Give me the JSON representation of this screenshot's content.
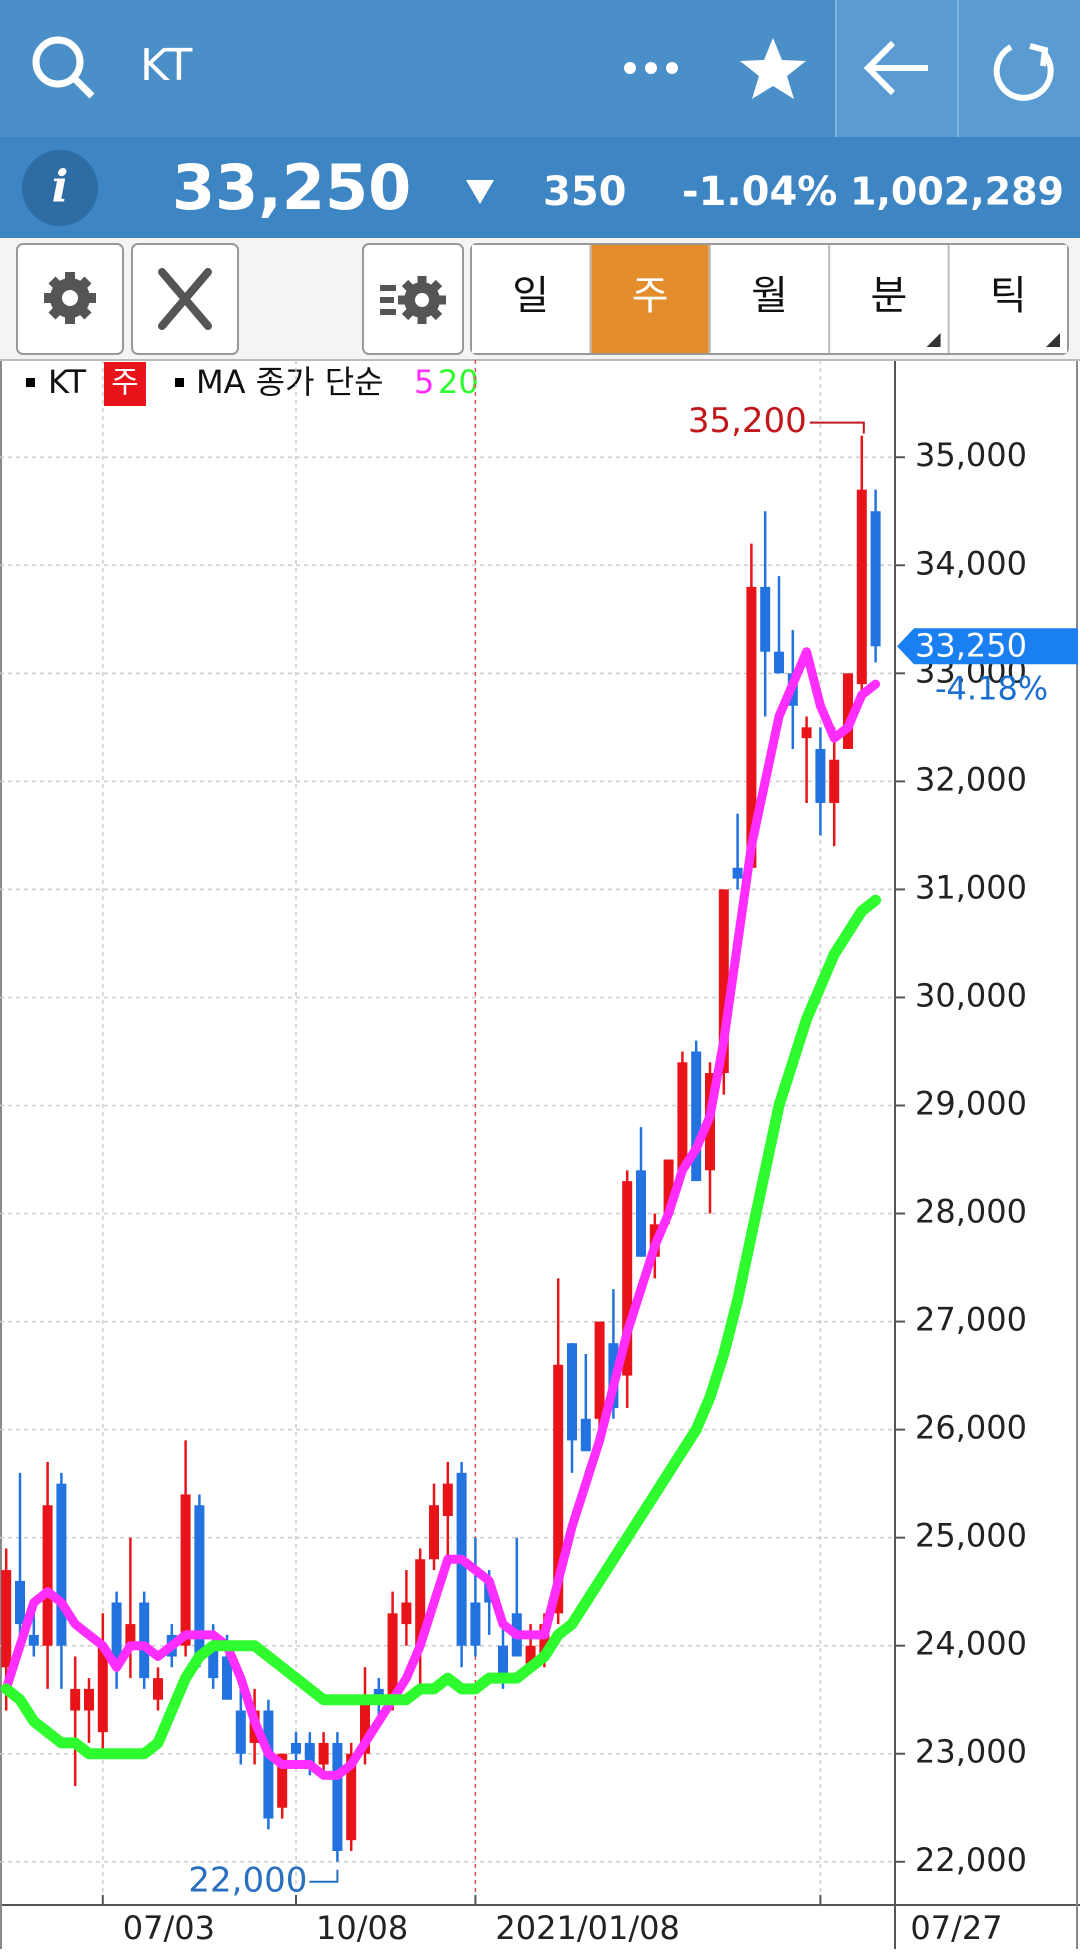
{
  "header": {
    "title": "KT",
    "price": "33,250",
    "change": "350",
    "change_pct": "-1.04%",
    "volume": "1,002,289"
  },
  "toolbar": {
    "tabs": [
      "일",
      "주",
      "월",
      "분",
      "틱"
    ],
    "active": 1
  },
  "chart_data": {
    "type": "candlestick",
    "legend": {
      "symbol": "KT",
      "period": "주",
      "ma_label": "MA 종가 단순"
    },
    "categories": [
      null,
      null,
      null,
      null,
      null,
      null,
      null,
      "07/03",
      null,
      null,
      null,
      null,
      null,
      null,
      null,
      null,
      null,
      null,
      null,
      null,
      null,
      "10/08",
      null,
      null,
      null,
      null,
      null,
      null,
      null,
      null,
      null,
      null,
      null,
      null,
      "2021/01/08",
      null,
      null,
      null,
      null,
      null,
      null,
      null,
      null,
      null,
      null,
      null,
      null,
      null,
      null,
      null,
      null,
      null,
      null,
      null,
      null,
      null,
      null,
      null,
      null,
      "07/27",
      null,
      null,
      null,
      null
    ],
    "candles": [
      {
        "open": 23800,
        "high": 24900,
        "low": 23400,
        "close": 24700
      },
      {
        "open": 24600,
        "high": 25600,
        "low": 24000,
        "close": 24200
      },
      {
        "open": 24100,
        "high": 24300,
        "low": 23900,
        "close": 24000
      },
      {
        "open": 24000,
        "high": 25700,
        "low": 23600,
        "close": 25300
      },
      {
        "open": 25500,
        "high": 25600,
        "low": 23600,
        "close": 24000
      },
      {
        "open": 23400,
        "high": 23900,
        "low": 22700,
        "close": 23600
      },
      {
        "open": 23400,
        "high": 23700,
        "low": 23100,
        "close": 23600
      },
      {
        "open": 23200,
        "high": 24300,
        "low": 23000,
        "close": 24000
      },
      {
        "open": 24400,
        "high": 24500,
        "low": 23600,
        "close": 23800
      },
      {
        "open": 24000,
        "high": 25000,
        "low": 23700,
        "close": 24200
      },
      {
        "open": 24400,
        "high": 24500,
        "low": 23600,
        "close": 23700
      },
      {
        "open": 23500,
        "high": 23800,
        "low": 23400,
        "close": 23700
      },
      {
        "open": 24100,
        "high": 24200,
        "low": 23800,
        "close": 23900
      },
      {
        "open": 24000,
        "high": 25900,
        "low": 23900,
        "close": 25400
      },
      {
        "open": 25300,
        "high": 25400,
        "low": 23800,
        "close": 23900
      },
      {
        "open": 24000,
        "high": 24200,
        "low": 23600,
        "close": 23700
      },
      {
        "open": 23900,
        "high": 24100,
        "low": 23500,
        "close": 23500
      },
      {
        "open": 23400,
        "high": 23600,
        "low": 22900,
        "close": 23000
      },
      {
        "open": 23100,
        "high": 23600,
        "low": 22900,
        "close": 23400
      },
      {
        "open": 23400,
        "high": 23500,
        "low": 22300,
        "close": 22400
      },
      {
        "open": 22500,
        "high": 23000,
        "low": 22400,
        "close": 23000
      },
      {
        "open": 23100,
        "high": 23200,
        "low": 22900,
        "close": 23000
      },
      {
        "open": 23100,
        "high": 23200,
        "low": 22800,
        "close": 22900
      },
      {
        "open": 22900,
        "high": 23200,
        "low": 22800,
        "close": 23100
      },
      {
        "open": 23100,
        "high": 23200,
        "low": 22000,
        "close": 22100
      },
      {
        "open": 22200,
        "high": 23100,
        "low": 22100,
        "close": 23000
      },
      {
        "open": 23000,
        "high": 23800,
        "low": 22900,
        "close": 23500
      },
      {
        "open": 23600,
        "high": 23700,
        "low": 23300,
        "close": 23500
      },
      {
        "open": 23500,
        "high": 24500,
        "low": 23400,
        "close": 24300
      },
      {
        "open": 24200,
        "high": 24700,
        "low": 24000,
        "close": 24400
      },
      {
        "open": 24000,
        "high": 24900,
        "low": 23600,
        "close": 24800
      },
      {
        "open": 24800,
        "high": 25500,
        "low": 24700,
        "close": 25300
      },
      {
        "open": 25200,
        "high": 25700,
        "low": 24800,
        "close": 25500
      },
      {
        "open": 25600,
        "high": 25700,
        "low": 23800,
        "close": 24000
      },
      {
        "open": 24400,
        "high": 25000,
        "low": 23900,
        "close": 24000
      },
      {
        "open": 24600,
        "high": 24700,
        "low": 24100,
        "close": 24400
      },
      {
        "open": 24000,
        "high": 24300,
        "low": 23600,
        "close": 23700
      },
      {
        "open": 24300,
        "high": 25000,
        "low": 23900,
        "close": 23900
      },
      {
        "open": 23800,
        "high": 24200,
        "low": 23800,
        "close": 24000
      },
      {
        "open": 23900,
        "high": 24300,
        "low": 23800,
        "close": 24200
      },
      {
        "open": 24300,
        "high": 27400,
        "low": 24200,
        "close": 26600
      },
      {
        "open": 26800,
        "high": 26800,
        "low": 25600,
        "close": 25900
      },
      {
        "open": 26100,
        "high": 26700,
        "low": 25800,
        "close": 25800
      },
      {
        "open": 26100,
        "high": 27000,
        "low": 25900,
        "close": 27000
      },
      {
        "open": 26800,
        "high": 27300,
        "low": 26100,
        "close": 26200
      },
      {
        "open": 26500,
        "high": 28400,
        "low": 26200,
        "close": 28300
      },
      {
        "open": 28400,
        "high": 28800,
        "low": 27600,
        "close": 27600
      },
      {
        "open": 27600,
        "high": 28000,
        "low": 27400,
        "close": 27900
      },
      {
        "open": 28000,
        "high": 28400,
        "low": 27900,
        "close": 28500
      },
      {
        "open": 28400,
        "high": 29500,
        "low": 28300,
        "close": 29400
      },
      {
        "open": 29500,
        "high": 29600,
        "low": 28300,
        "close": 28300
      },
      {
        "open": 28400,
        "high": 29400,
        "low": 28000,
        "close": 29300
      },
      {
        "open": 29300,
        "high": 31000,
        "low": 29100,
        "close": 31000
      },
      {
        "open": 31200,
        "high": 31700,
        "low": 31000,
        "close": 31100
      },
      {
        "open": 31200,
        "high": 34200,
        "low": 31200,
        "close": 33800
      },
      {
        "open": 33800,
        "high": 34500,
        "low": 32600,
        "close": 33200
      },
      {
        "open": 33200,
        "high": 33900,
        "low": 33000,
        "close": 33000
      },
      {
        "open": 33000,
        "high": 33400,
        "low": 32300,
        "close": 32700
      },
      {
        "open": 32400,
        "high": 32600,
        "low": 31800,
        "close": 32500
      },
      {
        "open": 32300,
        "high": 32500,
        "low": 31500,
        "close": 31800
      },
      {
        "open": 31800,
        "high": 32500,
        "low": 31400,
        "close": 32200
      },
      {
        "open": 32300,
        "high": 33000,
        "low": 32300,
        "close": 33000
      },
      {
        "open": 32900,
        "high": 35200,
        "low": 32800,
        "close": 34700
      },
      {
        "open": 34500,
        "high": 34700,
        "low": 33100,
        "close": 33250
      }
    ],
    "up_color": "#e8141a",
    "down_color": "#2272e0",
    "series": [
      {
        "name": "5",
        "color": "#ff2eff",
        "values": [
          23600,
          24000,
          24400,
          24500,
          24400,
          24200,
          24100,
          24000,
          23800,
          24000,
          24000,
          23900,
          24000,
          24100,
          24100,
          24100,
          24000,
          23700,
          23300,
          23000,
          22900,
          22900,
          22900,
          22800,
          22800,
          22900,
          23100,
          23300,
          23500,
          23700,
          24000,
          24400,
          24800,
          24800,
          24700,
          24600,
          24200,
          24100,
          24100,
          24100,
          24600,
          25100,
          25500,
          25900,
          26400,
          26900,
          27300,
          27700,
          28000,
          28400,
          28600,
          28900,
          29600,
          30500,
          31400,
          32000,
          32600,
          32900,
          33200,
          32700,
          32400,
          32500,
          32800,
          32900
        ]
      },
      {
        "name": "20",
        "color": "#2efc2e",
        "values": [
          23600,
          23500,
          23300,
          23200,
          23100,
          23100,
          23000,
          23000,
          23000,
          23000,
          23000,
          23100,
          23400,
          23700,
          23900,
          24000,
          24000,
          24000,
          24000,
          23900,
          23800,
          23700,
          23600,
          23500,
          23500,
          23500,
          23500,
          23500,
          23500,
          23500,
          23600,
          23600,
          23700,
          23600,
          23600,
          23700,
          23700,
          23700,
          23800,
          23900,
          24100,
          24200,
          24400,
          24600,
          24800,
          25000,
          25200,
          25400,
          25600,
          25800,
          26000,
          26300,
          26700,
          27200,
          27800,
          28400,
          29000,
          29400,
          29800,
          30100,
          30400,
          30600,
          30800,
          30900
        ]
      }
    ],
    "ylim": [
      21600,
      35900
    ],
    "yticks": [
      {
        "value": 22000,
        "label": "22,000"
      },
      {
        "value": 23000,
        "label": "23,000"
      },
      {
        "value": 24000,
        "label": "24,000"
      },
      {
        "value": 25000,
        "label": "25,000"
      },
      {
        "value": 26000,
        "label": "26,000"
      },
      {
        "value": 27000,
        "label": "27,000"
      },
      {
        "value": 28000,
        "label": "28,000"
      },
      {
        "value": 29000,
        "label": "29,000"
      },
      {
        "value": 30000,
        "label": "30,000"
      },
      {
        "value": 31000,
        "label": "31,000"
      },
      {
        "value": 32000,
        "label": "32,000"
      },
      {
        "value": 33000,
        "label": "33,000"
      },
      {
        "value": 34000,
        "label": "34,000"
      },
      {
        "value": 35000,
        "label": "35,000"
      }
    ],
    "high_label": {
      "value": 35200,
      "label": "35,200"
    },
    "low_label": {
      "value": 22000,
      "label": "22,000"
    },
    "last_price": {
      "value": 33250,
      "label": "33,250"
    },
    "last_change": "-4.18%",
    "grid": true
  }
}
